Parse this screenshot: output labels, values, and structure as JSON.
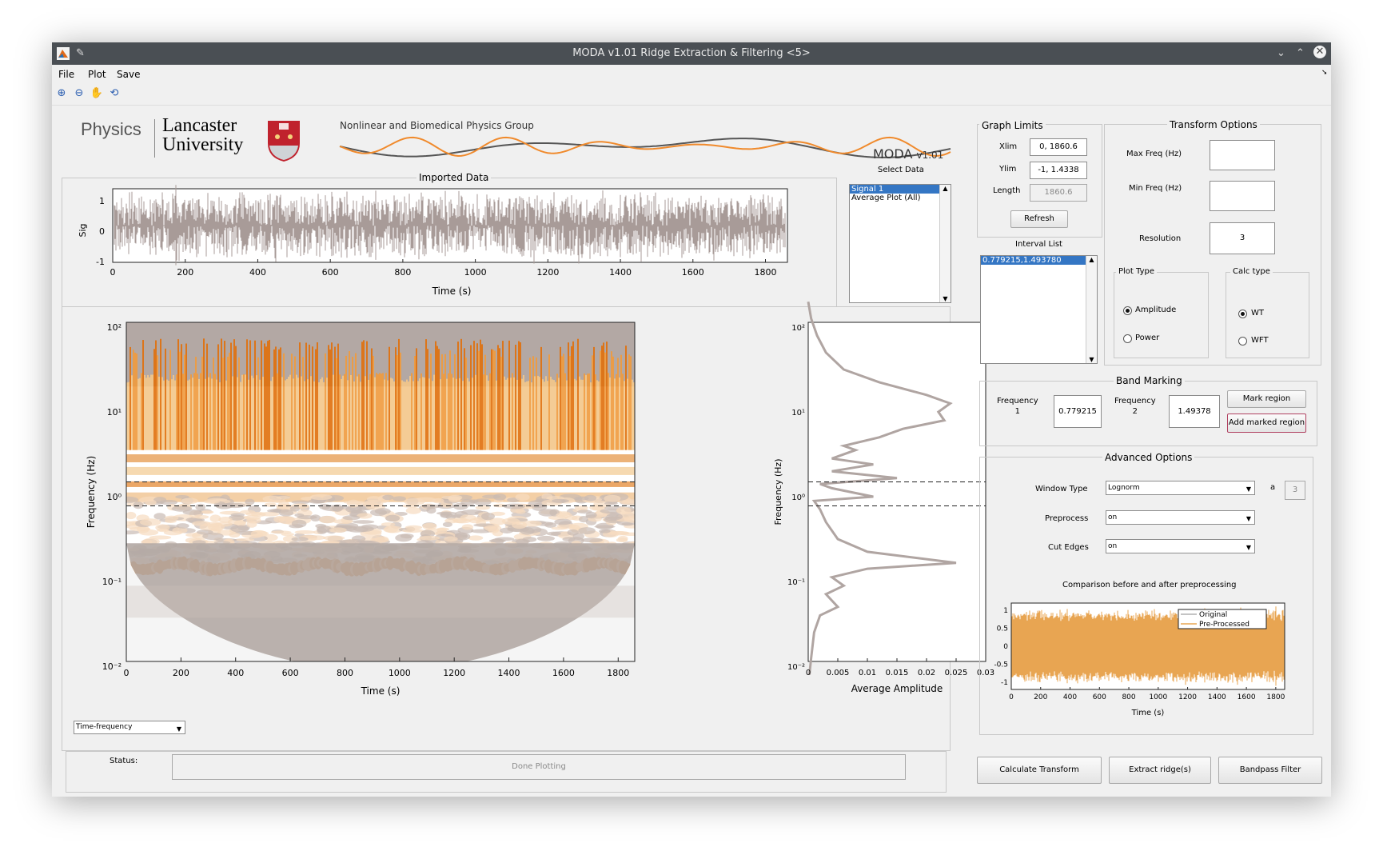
{
  "window": {
    "title": "MODA v1.01 Ridge Extraction & Filtering <5>"
  },
  "menu": [
    "File",
    "Plot",
    "Save"
  ],
  "icons": {
    "zoom_in": "zoom-in-icon",
    "zoom_out": "zoom-out-icon",
    "pan": "pan-hand-icon",
    "rotate": "rotate-icon"
  },
  "header": {
    "physics": "Physics",
    "uni_line1": "Lancaster",
    "uni_line2": "University",
    "group": "Nonlinear and Biomedical Physics Group",
    "moda": "MODA",
    "version": "v1.01",
    "wave_colors": [
      "#555555",
      "#f08a2c"
    ]
  },
  "imported": {
    "title": "Imported Data",
    "ylabel": "Sig",
    "xlabel": "Time (s)",
    "yticks": [
      "1",
      "0",
      "-1"
    ],
    "xticks": [
      "0",
      "200",
      "400",
      "600",
      "800",
      "1000",
      "1200",
      "1400",
      "1600",
      "1800"
    ]
  },
  "select_data": {
    "label": "Select Data",
    "items": [
      "Signal 1",
      "Average Plot (All)"
    ],
    "selected": 0
  },
  "graph_limits": {
    "title": "Graph Limits",
    "xlim_label": "Xlim",
    "xlim": "0, 1860.6",
    "ylim_label": "Ylim",
    "ylim": "-1, 1.4338",
    "length_label": "Length",
    "length": "1860.6",
    "refresh": "Refresh"
  },
  "interval_list": {
    "label": "Interval List",
    "items": [
      "0.779215,1.493780"
    ]
  },
  "transform": {
    "title": "Transform Options",
    "max_freq": "Max Freq (Hz)",
    "min_freq": "Min Freq (Hz)",
    "resolution": "Resolution",
    "resolution_value": "3",
    "plot_type": {
      "title": "Plot Type",
      "options": [
        "Amplitude",
        "Power"
      ],
      "selected": 0
    },
    "calc_type": {
      "title": "Calc type",
      "options": [
        "WT",
        "WFT"
      ],
      "selected": 0
    }
  },
  "band": {
    "title": "Band Marking",
    "f1_label": "Frequency\n1",
    "f1_value": "0.779215",
    "f2_label": "Frequency\n2",
    "f2_value": "1.49378",
    "mark": "Mark region",
    "add": "Add marked region"
  },
  "advanced": {
    "title": "Advanced Options",
    "window_type_label": "Window Type",
    "window_type": "Lognorm",
    "a_label": "a",
    "a_value": "3",
    "preprocess_label": "Preprocess",
    "preprocess": "on",
    "cut_edges_label": "Cut Edges",
    "cut_edges": "on",
    "comparison_title": "Comparison before and after preprocessing",
    "legend": [
      "Original",
      "Pre-Processed"
    ],
    "yticks": [
      "1",
      "0.5",
      "0",
      "-0.5",
      "-1"
    ],
    "xticks": [
      "0",
      "200",
      "400",
      "600",
      "800",
      "1000",
      "1200",
      "1400",
      "1600",
      "1800"
    ],
    "xlabel": "Time (s)"
  },
  "tf_plot": {
    "ylabel": "Frequency (Hz)",
    "xlabel": "Time (s)",
    "xticks": [
      "0",
      "200",
      "400",
      "600",
      "800",
      "1000",
      "1200",
      "1400",
      "1600",
      "1800"
    ],
    "yticks": [
      "10²",
      "10¹",
      "10⁰",
      "10⁻¹",
      "10⁻²"
    ],
    "mode": "Time-frequency"
  },
  "avg_plot": {
    "ylabel": "Frequency (Hz)",
    "xlabel": "Average Amplitude",
    "xticks": [
      "0",
      "0.005",
      "0.01",
      "0.015",
      "0.02",
      "0.025",
      "0.03"
    ],
    "yticks": [
      "10²",
      "10¹",
      "10⁰",
      "10⁻¹",
      "10⁻²"
    ]
  },
  "status": {
    "label": "Status:",
    "value": "Done Plotting"
  },
  "actions": [
    "Calculate Transform",
    "Extract ridge(s)",
    "Bandpass Filter"
  ],
  "colors": {
    "signal": "#a89b98",
    "orange": "#e57a0e",
    "avg_line": "#b0a5a2",
    "preprocessed": "#e8a552"
  }
}
